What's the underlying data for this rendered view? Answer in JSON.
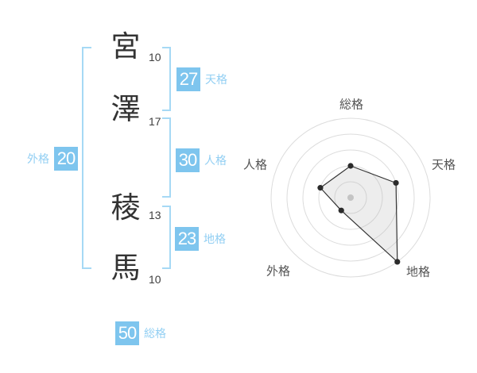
{
  "colors": {
    "background": "#ffffff",
    "badge_blue": "#7ec5ee",
    "label_blue": "#92cff3",
    "bracket_blue": "#a6d9f5",
    "char_ink": "#333333",
    "stroke_count_ink": "#3e3e3e",
    "radar_ring": "#dcdcdc",
    "radar_line": "#333333",
    "radar_vertex_dot": "#2b2b2b",
    "radar_center_dot": "#c4c4c4",
    "radar_fill": "rgba(185,185,185,0.25)",
    "radar_label": "#555555"
  },
  "name_analysis": {
    "characters": [
      {
        "char": "宮",
        "strokes": "10"
      },
      {
        "char": "澤",
        "strokes": "17"
      },
      {
        "char": "稜",
        "strokes": "13"
      },
      {
        "char": "馬",
        "strokes": "10"
      }
    ],
    "kaku": [
      {
        "id": "tenkaku",
        "label": "天格",
        "value": "27"
      },
      {
        "id": "jinkaku",
        "label": "人格",
        "value": "30"
      },
      {
        "id": "chikaku",
        "label": "地格",
        "value": "23"
      },
      {
        "id": "gaikaku",
        "label": "外格",
        "value": "20"
      },
      {
        "id": "soukaku",
        "label": "総格",
        "value": "50"
      }
    ]
  },
  "chart_data": {
    "type": "radar",
    "title": "",
    "categories": [
      "総格",
      "天格",
      "地格",
      "外格",
      "人格"
    ],
    "values": [
      2,
      3,
      5,
      1,
      2
    ],
    "max": 5,
    "rings": 5,
    "start_axis": "top",
    "direction": "clockwise",
    "grid": "concentric-circles",
    "legend": "none"
  }
}
